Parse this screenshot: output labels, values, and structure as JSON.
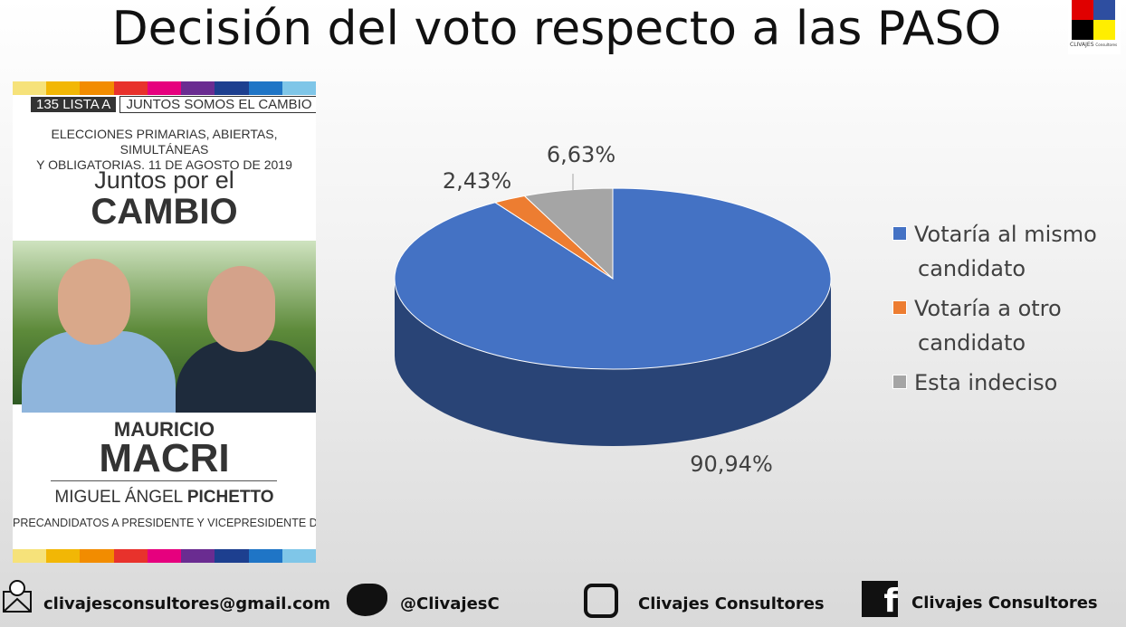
{
  "chart_data": {
    "type": "pie",
    "title": "Decisión del voto respecto a las PASO",
    "categories": [
      "Votaría al mismo candidato",
      "Votaría a otro candidato",
      "Esta indeciso"
    ],
    "values": [
      90.94,
      2.43,
      6.63
    ],
    "value_labels": [
      "90,94%",
      "2,43%",
      "6,63%"
    ],
    "colors": [
      "#4472c4",
      "#ed7d31",
      "#a5a5a5"
    ],
    "legend": "right"
  },
  "logo": {
    "text": "CLIVAJES",
    "subtext": "Consultores"
  },
  "ballot": {
    "list_number": "135 LISTA A",
    "list_name": "JUNTOS SOMOS EL CAMBIO",
    "election_lines": [
      "ELECCIONES PRIMARIAS, ABIERTAS, SIMULTÁNEAS",
      "Y OBLIGATORIAS. 11 DE AGOSTO DE 2019"
    ],
    "party_top": "Juntos por el",
    "party_main": "CAMBIO",
    "first_name": "MAURICIO",
    "last_name": "MACRI",
    "vice_first": "MIGUEL ÁNGEL",
    "vice_last": "PICHETTO",
    "footer": "PRECANDIDATOS A PRESIDENTE Y VICEPRESIDENTE DE LA NACIÓN"
  },
  "footer": {
    "email": "clivajesconsultores@gmail.com",
    "twitter": "@ClivajesC",
    "instagram": "Clivajes Consultores",
    "facebook": "Clivajes Consultores"
  }
}
